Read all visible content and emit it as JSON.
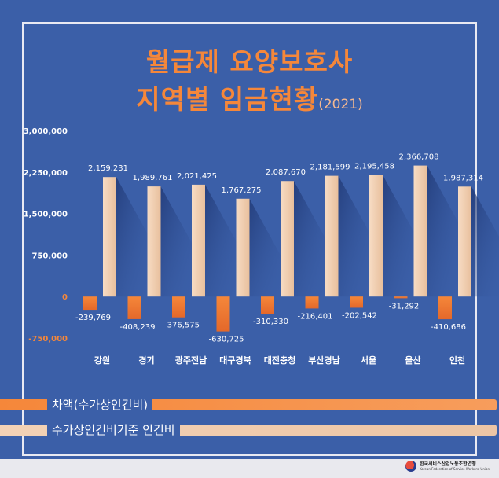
{
  "title_line1": "월급제 요양보호사",
  "title_line2": "지역별 임금현황",
  "title_year": "(2021)",
  "chart_data": {
    "type": "bar",
    "categories": [
      "강원",
      "경기",
      "광주전남",
      "대구경북",
      "대전충청",
      "부산경남",
      "서울",
      "울산",
      "인천"
    ],
    "series": [
      {
        "name": "차액(수가상인건비)",
        "values": [
          -239769,
          -408239,
          -376575,
          -630725,
          -310330,
          -216401,
          -202542,
          -31292,
          -410686
        ],
        "color": "#f5873a"
      },
      {
        "name": "수가상인건비기준 인건비",
        "values": [
          2159231,
          1989761,
          2021425,
          1767275,
          2087670,
          2181599,
          2195458,
          2366708,
          1987314
        ],
        "color": "#f3d2b6"
      }
    ],
    "value_labels": {
      "difference": [
        "-239,769",
        "-408,239",
        "-376,575",
        "-630,725",
        "-310,330",
        "-216,401",
        "-202,542",
        "-31,292",
        "-410,686"
      ],
      "wage": [
        "2,159,231",
        "1,989,761",
        "2,021,425",
        "1,767,275",
        "2,087,670",
        "2,181,599",
        "2,195,458",
        "2,366,708",
        "1,987,314"
      ]
    },
    "yticks": [
      3000000,
      2250000,
      1500000,
      750000,
      0,
      -750000
    ],
    "ytick_labels": [
      "3,000,000",
      "2,250,000",
      "1,500,000",
      "750,000",
      "0",
      "-750,000"
    ],
    "ylim": [
      -750000,
      3000000
    ],
    "legend_placement": "bottom-left"
  },
  "legend": {
    "diff_label": "차액(수가상인건비)",
    "wage_label": "수가상인건비기준 인건비"
  },
  "footer": {
    "org": "한국서비스산업노동조합연맹",
    "org_en": "Korean Federation of Service Workers' Union"
  },
  "colors": {
    "background": "#3b5fa8",
    "accent": "#f5873a",
    "bar_light": "#f3d2b6"
  }
}
